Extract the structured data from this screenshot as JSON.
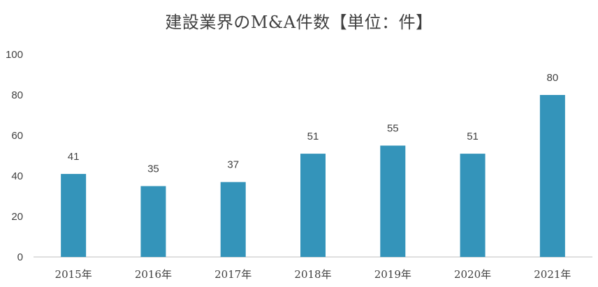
{
  "chart_data": {
    "type": "bar",
    "title": "建設業界のM&A件数【単位：件】",
    "categories": [
      "2015年",
      "2016年",
      "2017年",
      "2018年",
      "2019年",
      "2020年",
      "2021年"
    ],
    "values": [
      41,
      35,
      37,
      51,
      55,
      51,
      80
    ],
    "ylim": [
      0,
      100
    ],
    "yticks": [
      0,
      20,
      40,
      60,
      80,
      100
    ],
    "bar_color": "#3494BA",
    "axis_color": "#BFBFBF",
    "gridlines": false,
    "legend": "none"
  }
}
